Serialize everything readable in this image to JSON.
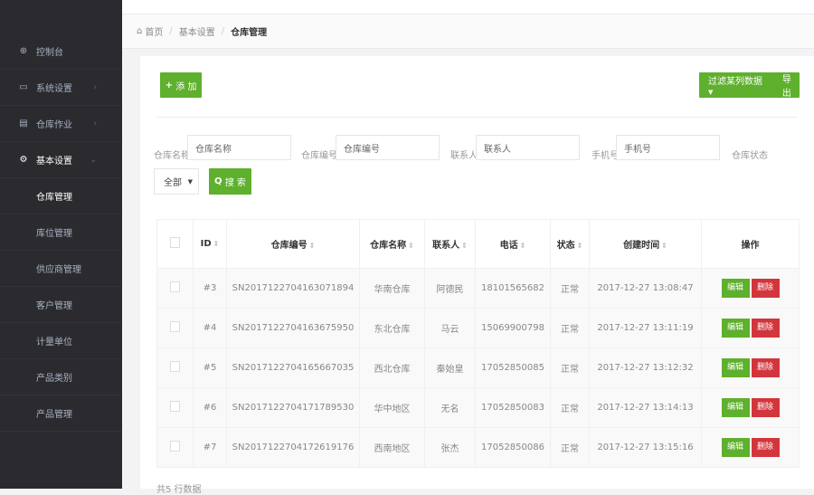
{
  "sidebar": {
    "items": [
      {
        "label": "控制台",
        "icon": "globe-icon"
      },
      {
        "label": "系统设置",
        "icon": "monitor-icon",
        "chevron": "›"
      },
      {
        "label": "仓库作业",
        "icon": "file-icon",
        "chevron": "›"
      },
      {
        "label": "基本设置",
        "icon": "gear-icon",
        "chevron": "⌄"
      }
    ],
    "sub_items": [
      "仓库管理",
      "库位管理",
      "供应商管理",
      "客户管理",
      "计量单位",
      "产品类别",
      "产品管理"
    ]
  },
  "breadcrumb": {
    "home": "首页",
    "parent": "基本设置",
    "current": "仓库管理"
  },
  "toolbar": {
    "add": "添 加",
    "filter": "过滤某列数据",
    "export": "导出"
  },
  "search": {
    "fields": [
      {
        "label": "仓库名称",
        "placeholder": "仓库名称"
      },
      {
        "label": "仓库编号",
        "placeholder": "仓库编号"
      },
      {
        "label": "联系人",
        "placeholder": "联系人"
      },
      {
        "label": "手机号",
        "placeholder": "手机号"
      }
    ],
    "status_label": "仓库状态",
    "status_value": "全部",
    "search_button": "搜 索"
  },
  "table": {
    "headers": [
      "ID",
      "仓库编号",
      "仓库名称",
      "联系人",
      "电话",
      "状态",
      "创建时间",
      "操作"
    ],
    "rows": [
      [
        "#3",
        "SN2017122704163071894",
        "华南仓库",
        "阿德民",
        "18101565682",
        "正常",
        "2017-12-27 13:08:47"
      ],
      [
        "#4",
        "SN2017122704163675950",
        "东北仓库",
        "马云",
        "15069900798",
        "正常",
        "2017-12-27 13:11:19"
      ],
      [
        "#5",
        "SN2017122704165667035",
        "西北仓库",
        "秦始皇",
        "17052850085",
        "正常",
        "2017-12-27 13:12:32"
      ],
      [
        "#6",
        "SN2017122704171789530",
        "华中地区",
        "无名",
        "17052850083",
        "正常",
        "2017-12-27 13:14:13"
      ],
      [
        "#7",
        "SN2017122704172619176",
        "西南地区",
        "张杰",
        "17052850086",
        "正常",
        "2017-12-27 13:15:16"
      ]
    ],
    "edit": "编辑",
    "delete": "删除"
  },
  "footer": "共5 行数据",
  "colors": {
    "green": "#5eb02d",
    "red": "#d2363c",
    "sidebar": "#2b2b2f"
  }
}
